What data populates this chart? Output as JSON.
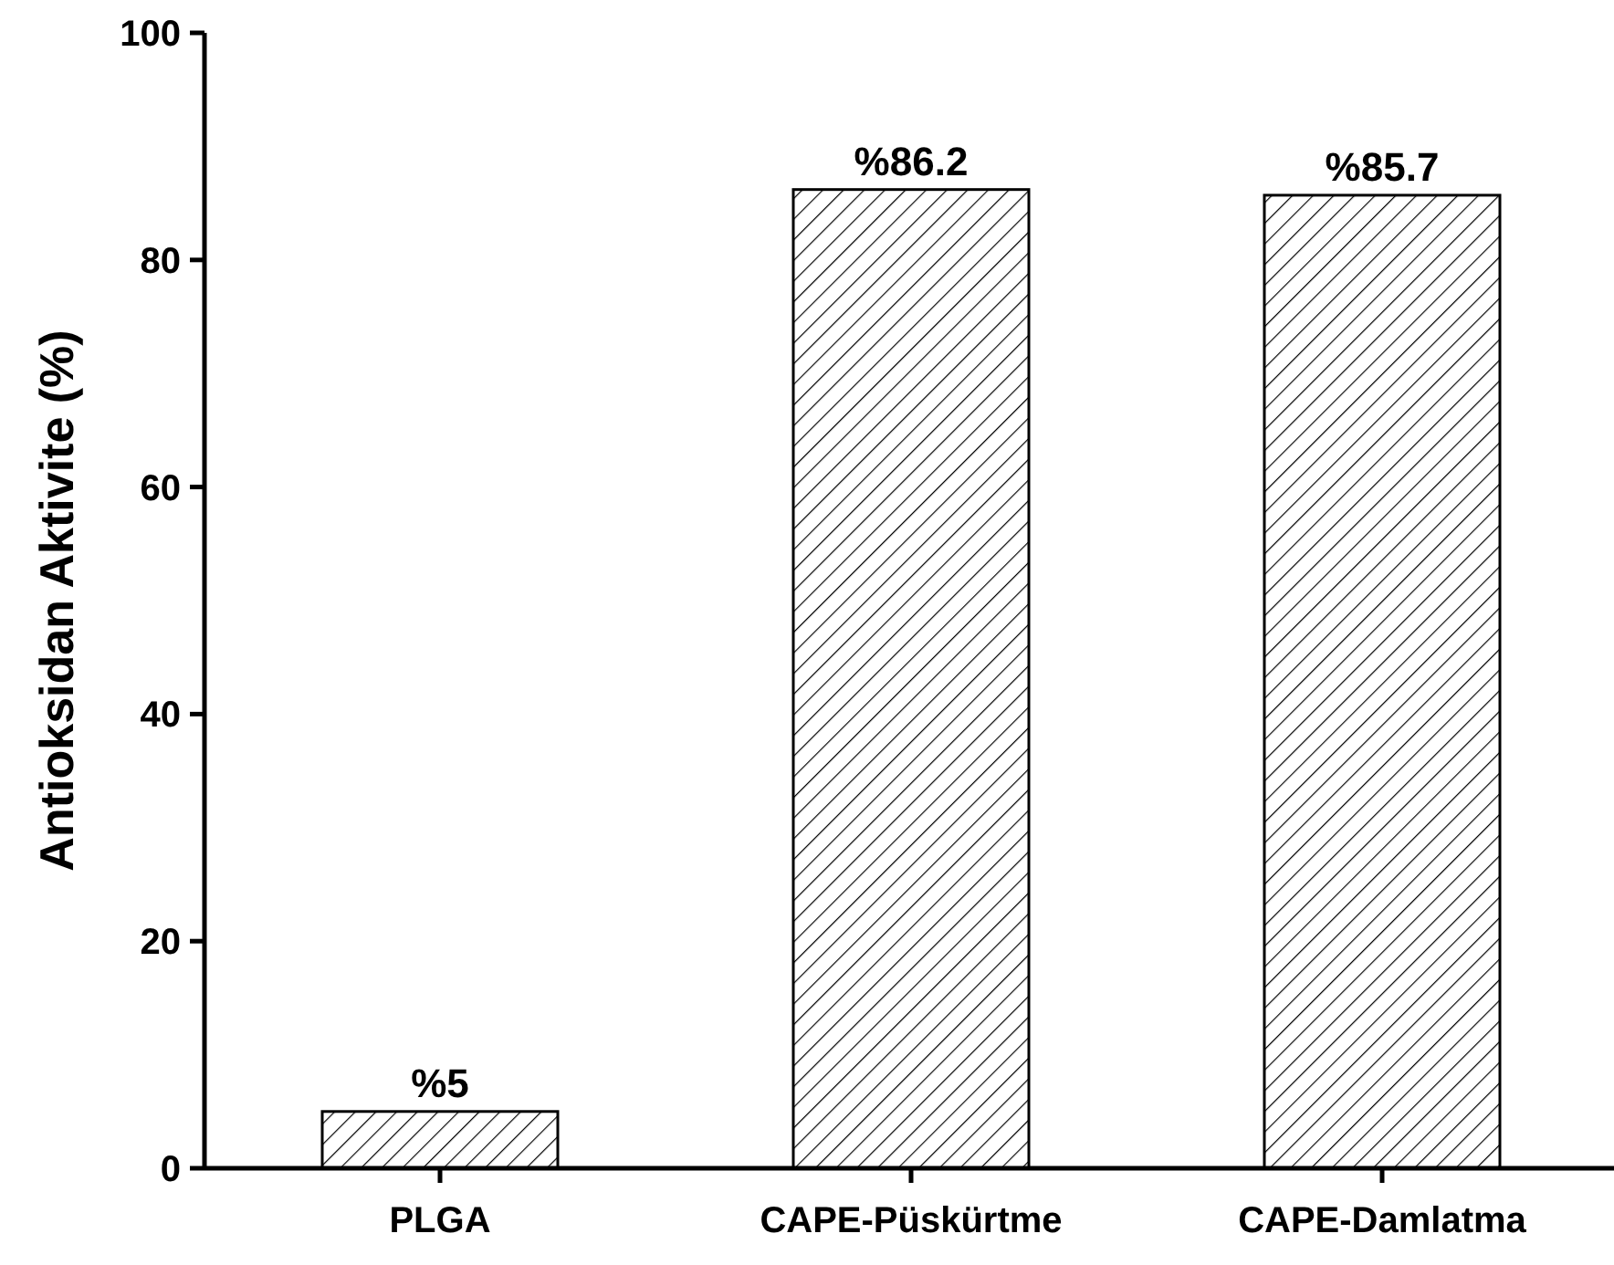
{
  "chart_data": {
    "type": "bar",
    "ylabel": "Antioksidan Aktivite (%)",
    "categories": [
      "PLGA",
      "CAPE-Püskürtme",
      "CAPE-Damlatma"
    ],
    "values": [
      5,
      86.2,
      85.7
    ],
    "value_labels": [
      "%5",
      "%86.2",
      "%85.7"
    ],
    "color": "#000000",
    "ylim": [
      0,
      100
    ],
    "yticks": [
      0,
      20,
      40,
      60,
      80,
      100
    ],
    "grid": false
  }
}
